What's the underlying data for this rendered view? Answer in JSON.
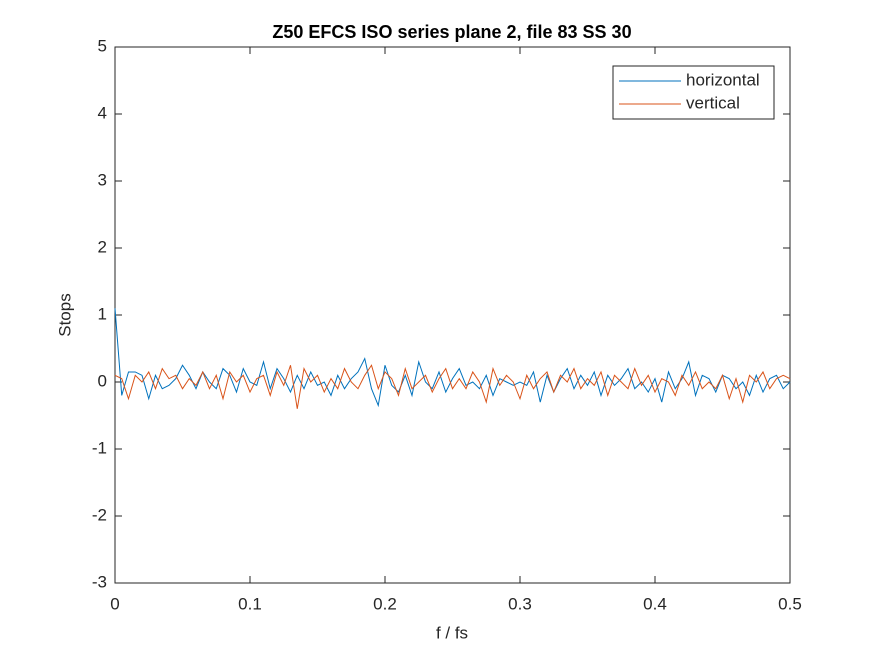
{
  "chart_data": {
    "type": "line",
    "title": "Z50 EFCS ISO series plane 2, file 83 SS 30",
    "xlabel": "f / fs",
    "ylabel": "Stops",
    "x": [
      0,
      0.005,
      0.01,
      0.015,
      0.02,
      0.025,
      0.03,
      0.035,
      0.04,
      0.045,
      0.05,
      0.055,
      0.06,
      0.065,
      0.07,
      0.075,
      0.08,
      0.085,
      0.09,
      0.095,
      0.1,
      0.105,
      0.11,
      0.115,
      0.12,
      0.125,
      0.13,
      0.135,
      0.14,
      0.145,
      0.15,
      0.155,
      0.16,
      0.165,
      0.17,
      0.175,
      0.18,
      0.185,
      0.19,
      0.195,
      0.2,
      0.205,
      0.21,
      0.215,
      0.22,
      0.225,
      0.23,
      0.235,
      0.24,
      0.245,
      0.25,
      0.255,
      0.26,
      0.265,
      0.27,
      0.275,
      0.28,
      0.285,
      0.29,
      0.295,
      0.3,
      0.305,
      0.31,
      0.315,
      0.32,
      0.325,
      0.33,
      0.335,
      0.34,
      0.345,
      0.35,
      0.355,
      0.36,
      0.365,
      0.37,
      0.375,
      0.38,
      0.385,
      0.39,
      0.395,
      0.4,
      0.405,
      0.41,
      0.415,
      0.42,
      0.425,
      0.43,
      0.435,
      0.44,
      0.445,
      0.45,
      0.455,
      0.46,
      0.465,
      0.47,
      0.475,
      0.48,
      0.485,
      0.49,
      0.495,
      0.5
    ],
    "series": [
      {
        "name": "horizontal",
        "color": "#0072bd",
        "values": [
          1.1,
          -0.2,
          0.15,
          0.15,
          0.1,
          -0.25,
          0.1,
          -0.1,
          -0.05,
          0.05,
          0.25,
          0.1,
          -0.1,
          0.15,
          0.0,
          -0.1,
          0.2,
          0.1,
          -0.15,
          0.2,
          0.0,
          -0.05,
          0.3,
          -0.1,
          0.2,
          0.05,
          -0.15,
          0.1,
          -0.1,
          0.15,
          -0.05,
          0.0,
          -0.2,
          0.1,
          -0.1,
          0.05,
          0.15,
          0.35,
          -0.1,
          -0.35,
          0.25,
          -0.05,
          -0.15,
          0.1,
          -0.2,
          0.3,
          0.0,
          -0.1,
          0.15,
          -0.15,
          0.05,
          0.2,
          -0.05,
          0.0,
          -0.1,
          0.1,
          -0.2,
          0.05,
          0.0,
          -0.05,
          0.0,
          -0.05,
          0.15,
          -0.3,
          0.1,
          -0.15,
          0.05,
          0.2,
          -0.1,
          0.1,
          -0.05,
          0.15,
          -0.2,
          0.1,
          -0.05,
          0.05,
          0.2,
          -0.1,
          0.0,
          -0.15,
          0.05,
          -0.3,
          0.15,
          -0.1,
          0.05,
          0.3,
          -0.2,
          0.1,
          0.05,
          -0.15,
          0.1,
          0.05,
          -0.1,
          0.0,
          -0.2,
          0.1,
          -0.15,
          0.05,
          0.1,
          -0.1,
          0.0
        ]
      },
      {
        "name": "vertical",
        "color": "#d95319",
        "values": [
          0.1,
          0.05,
          -0.25,
          0.1,
          0.0,
          0.15,
          -0.1,
          0.2,
          0.05,
          0.1,
          -0.1,
          0.05,
          -0.05,
          0.15,
          -0.1,
          0.1,
          -0.25,
          0.15,
          0.0,
          0.1,
          -0.15,
          0.05,
          0.1,
          -0.2,
          0.15,
          -0.05,
          0.25,
          -0.4,
          0.2,
          0.0,
          0.1,
          -0.15,
          0.05,
          -0.1,
          0.2,
          0.0,
          -0.1,
          0.1,
          0.25,
          -0.1,
          0.15,
          0.05,
          -0.2,
          0.2,
          -0.1,
          0.0,
          0.1,
          -0.15,
          0.05,
          0.2,
          -0.1,
          0.05,
          -0.1,
          0.15,
          0.0,
          -0.3,
          0.2,
          -0.05,
          0.1,
          0.0,
          -0.25,
          0.1,
          -0.1,
          0.05,
          0.15,
          -0.15,
          0.1,
          0.0,
          0.2,
          -0.1,
          0.05,
          -0.05,
          0.15,
          -0.2,
          0.1,
          0.0,
          -0.1,
          0.2,
          -0.05,
          0.1,
          -0.15,
          0.05,
          0.0,
          -0.2,
          0.1,
          -0.05,
          0.15,
          -0.1,
          0.0,
          -0.1,
          0.1,
          -0.25,
          0.05,
          -0.3,
          0.1,
          0.0,
          0.15,
          -0.1,
          0.05,
          0.1,
          0.05
        ]
      }
    ],
    "xlim": [
      0,
      0.5
    ],
    "xticks": [
      0,
      0.1,
      0.2,
      0.3,
      0.4,
      0.5
    ],
    "ylim": [
      -3,
      5
    ],
    "yticks": [
      -3,
      -2,
      -1,
      0,
      1,
      2,
      3,
      4,
      5
    ],
    "legend": "northeast"
  }
}
